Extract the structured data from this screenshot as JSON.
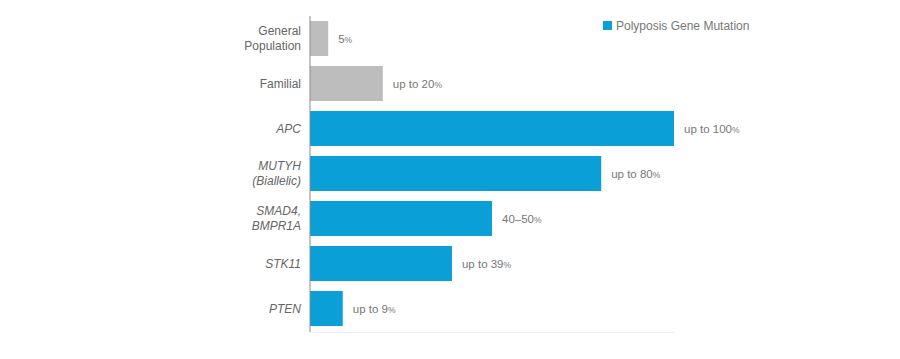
{
  "chart_data": {
    "type": "bar",
    "orientation": "horizontal",
    "categories": [
      "General Population",
      "Familial",
      "APC",
      "MUTYH (Biallelic)",
      "SMAD4, BMPR1A",
      "STK11",
      "PTEN"
    ],
    "series": [
      {
        "name": "Polyposis Gene Mutation",
        "color": "#0a9fd6",
        "values": [
          5,
          20,
          100,
          80,
          50,
          39,
          9
        ],
        "value_labels": [
          "5%",
          "up to 20%",
          "up to 100%",
          "up to 80%",
          "40–50%",
          "up to 39%",
          "up to 9%"
        ],
        "colors": [
          "#bdbdbd",
          "#bdbdbd",
          "#0a9fd6",
          "#0a9fd6",
          "#0a9fd6",
          "#0a9fd6",
          "#0a9fd6"
        ]
      }
    ],
    "xlim": [
      0,
      100
    ],
    "grid": false,
    "legend": "top-right",
    "data_labels": true,
    "tick_labels": "y"
  }
}
